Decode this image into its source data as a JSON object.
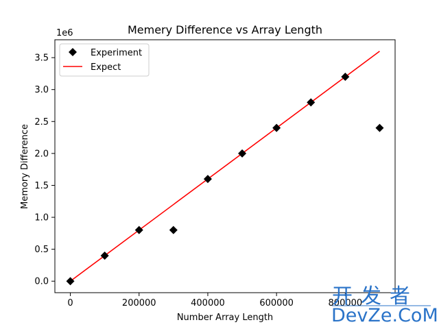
{
  "chart_data": {
    "type": "scatter",
    "title": "Memery Difference vs Array Length",
    "xlabel": "Number Array Length",
    "ylabel": "Memory Difference",
    "y_offset_label": "1e6",
    "xlim": [
      -45000,
      945000
    ],
    "ylim": [
      -0.18,
      3.78
    ],
    "xticks": [
      0,
      200000,
      400000,
      600000,
      800000
    ],
    "xtick_labels": [
      "0",
      "200000",
      "400000",
      "600000",
      "800000"
    ],
    "yticks": [
      0.0,
      0.5,
      1.0,
      1.5,
      2.0,
      2.5,
      3.0,
      3.5
    ],
    "ytick_labels": [
      "0.0",
      "0.5",
      "1.0",
      "1.5",
      "2.0",
      "2.5",
      "3.0",
      "3.5"
    ],
    "grid": false,
    "legend_position": "top-left",
    "series": [
      {
        "name": "Experiment",
        "kind": "scatter",
        "marker": "diamond",
        "color": "#000000",
        "x": [
          0,
          100000,
          200000,
          300000,
          400000,
          500000,
          600000,
          700000,
          800000,
          900000
        ],
        "y": [
          0.0,
          0.4,
          0.8,
          0.8,
          1.6,
          2.0,
          2.4,
          2.8,
          3.2,
          2.4
        ]
      },
      {
        "name": "Expect",
        "kind": "line",
        "color": "#ff0000",
        "x": [
          0,
          900000
        ],
        "y": [
          0.0,
          3.6
        ]
      }
    ]
  },
  "watermark": {
    "chinese": "开发者",
    "english": "DevZe.CoM",
    "color": "#2a73c8"
  }
}
